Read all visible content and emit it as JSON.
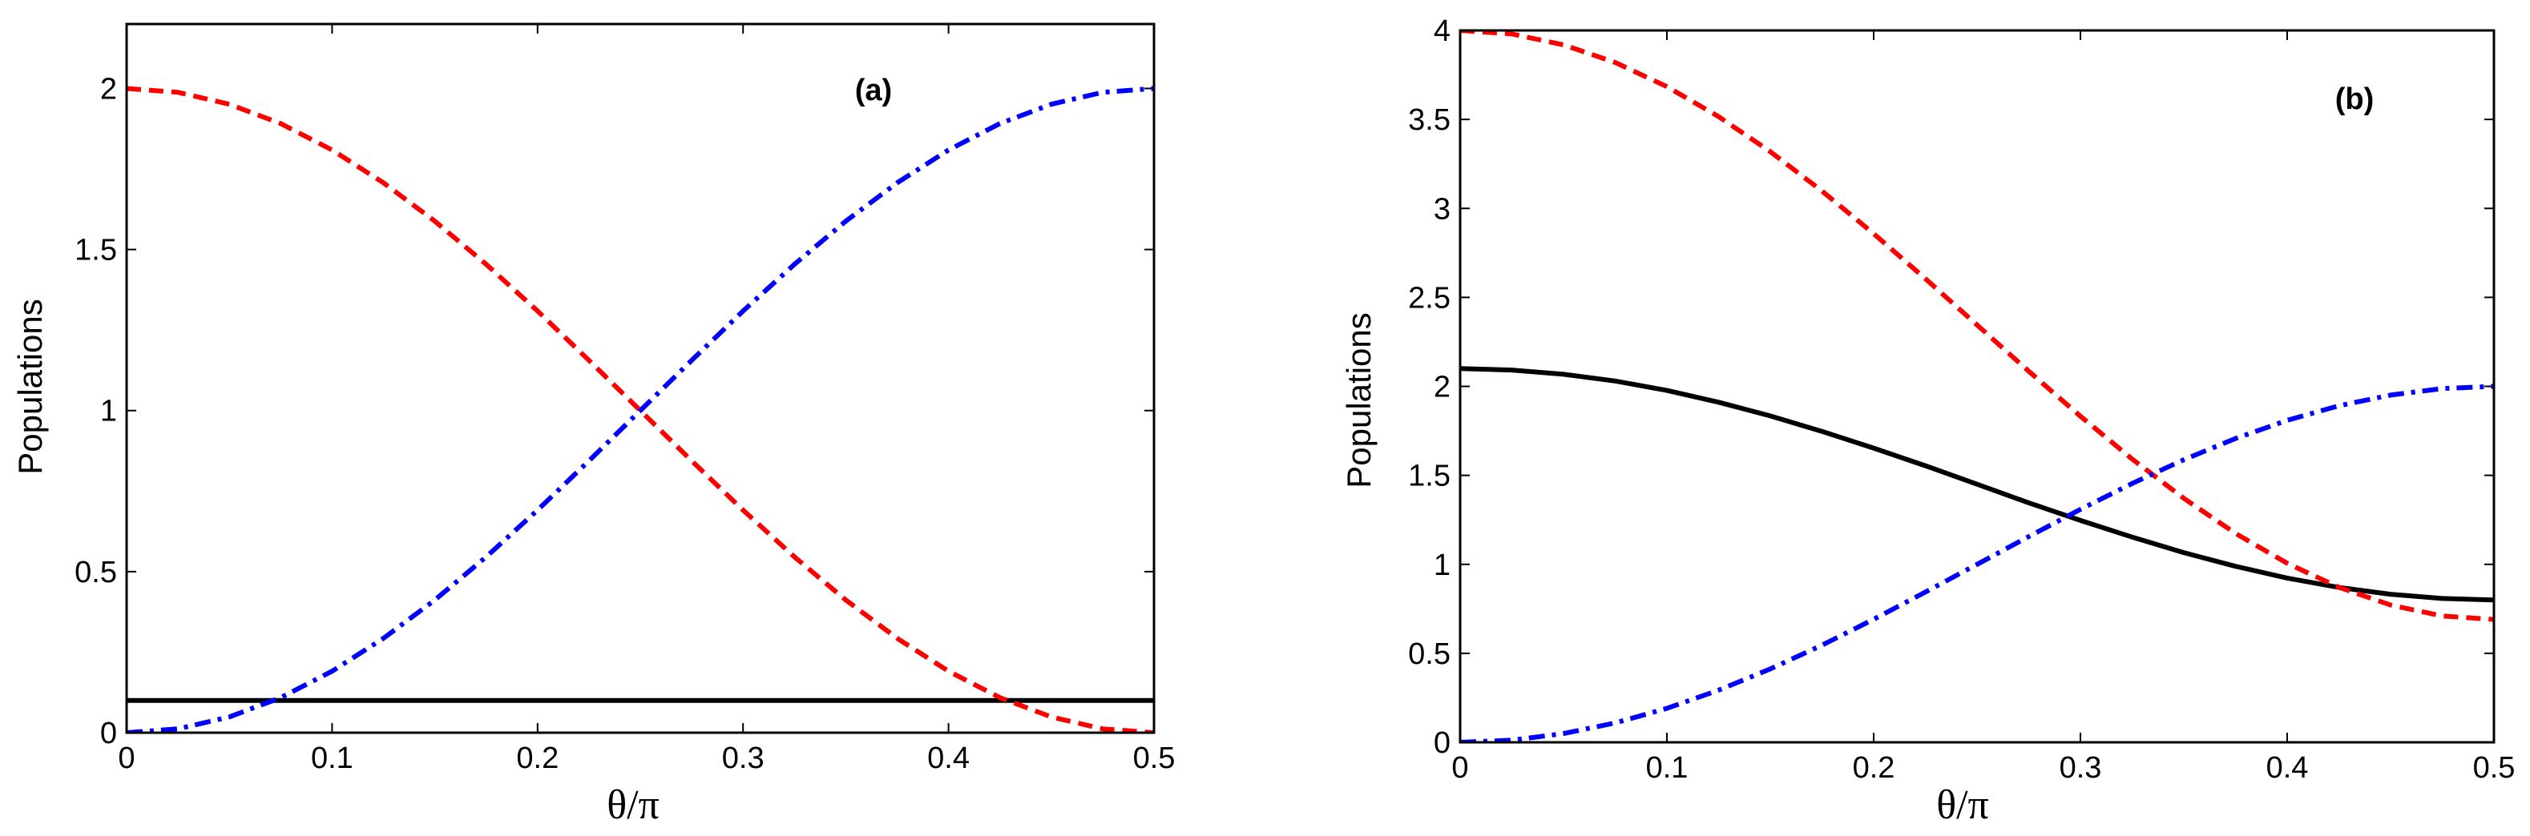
{
  "chart_data": [
    {
      "type": "line",
      "panel_label": "(a)",
      "xlabel": "θ/π",
      "ylabel": "Populations",
      "xlim": [
        0,
        0.5
      ],
      "ylim": [
        0,
        2.2
      ],
      "xticks": [
        0,
        0.1,
        0.2,
        0.3,
        0.4,
        0.5
      ],
      "xtick_labels": [
        "0",
        "0.1",
        "0.2",
        "0.3",
        "0.4",
        "0.5"
      ],
      "yticks": [
        0,
        0.5,
        1,
        1.5,
        2
      ],
      "ytick_labels": [
        "0",
        "0.5",
        "1",
        "1.5",
        "2"
      ],
      "grid": false,
      "series": [
        {
          "name": "black-solid",
          "color": "#000000",
          "style": "solid",
          "x": [
            0,
            0.05,
            0.1,
            0.15,
            0.2,
            0.25,
            0.3,
            0.35,
            0.4,
            0.45,
            0.5
          ],
          "y": [
            0.1,
            0.1,
            0.1,
            0.1,
            0.1,
            0.1,
            0.1,
            0.1,
            0.1,
            0.1,
            0.1
          ]
        },
        {
          "name": "red-dashed",
          "color": "#ff0000",
          "style": "dashed",
          "x": [
            0,
            0.025,
            0.05,
            0.075,
            0.1,
            0.125,
            0.15,
            0.175,
            0.2,
            0.225,
            0.25,
            0.275,
            0.3,
            0.325,
            0.35,
            0.375,
            0.4,
            0.425,
            0.45,
            0.475,
            0.5
          ],
          "y": [
            2.0,
            1.988,
            1.951,
            1.891,
            1.809,
            1.707,
            1.588,
            1.454,
            1.309,
            1.156,
            1.0,
            0.844,
            0.691,
            0.546,
            0.412,
            0.293,
            0.191,
            0.109,
            0.049,
            0.012,
            0.0
          ]
        },
        {
          "name": "blue-dashdot",
          "color": "#0000ff",
          "style": "dashdot",
          "x": [
            0,
            0.025,
            0.05,
            0.075,
            0.1,
            0.125,
            0.15,
            0.175,
            0.2,
            0.225,
            0.25,
            0.275,
            0.3,
            0.325,
            0.35,
            0.375,
            0.4,
            0.425,
            0.45,
            0.475,
            0.5
          ],
          "y": [
            0.0,
            0.012,
            0.049,
            0.109,
            0.191,
            0.293,
            0.412,
            0.546,
            0.691,
            0.844,
            1.0,
            1.156,
            1.309,
            1.454,
            1.588,
            1.707,
            1.809,
            1.891,
            1.951,
            1.988,
            2.0
          ]
        }
      ]
    },
    {
      "type": "line",
      "panel_label": "(b)",
      "xlabel": "θ/π",
      "ylabel": "Populations",
      "xlim": [
        0,
        0.5
      ],
      "ylim": [
        0,
        4
      ],
      "xticks": [
        0,
        0.1,
        0.2,
        0.3,
        0.4,
        0.5
      ],
      "xtick_labels": [
        "0",
        "0.1",
        "0.2",
        "0.3",
        "0.4",
        "0.5"
      ],
      "yticks": [
        0,
        0.5,
        1,
        1.5,
        2,
        2.5,
        3,
        3.5,
        4
      ],
      "ytick_labels": [
        "0",
        "0.5",
        "1",
        "1.5",
        "2",
        "2.5",
        "3",
        "3.5",
        "4"
      ],
      "grid": false,
      "series": [
        {
          "name": "black-solid",
          "color": "#000000",
          "style": "solid",
          "x": [
            0,
            0.025,
            0.05,
            0.075,
            0.1,
            0.125,
            0.15,
            0.175,
            0.2,
            0.225,
            0.25,
            0.275,
            0.3,
            0.325,
            0.35,
            0.375,
            0.4,
            0.425,
            0.45,
            0.475,
            0.5
          ],
          "y": [
            2.1,
            2.092,
            2.068,
            2.03,
            1.977,
            1.911,
            1.834,
            1.747,
            1.653,
            1.554,
            1.45,
            1.346,
            1.247,
            1.153,
            1.066,
            0.989,
            0.923,
            0.87,
            0.832,
            0.808,
            0.8
          ]
        },
        {
          "name": "red-dashed",
          "color": "#ff0000",
          "style": "dashed",
          "x": [
            0,
            0.025,
            0.05,
            0.075,
            0.1,
            0.125,
            0.15,
            0.175,
            0.2,
            0.225,
            0.25,
            0.275,
            0.3,
            0.325,
            0.35,
            0.375,
            0.4,
            0.425,
            0.45,
            0.475,
            0.5
          ],
          "y": [
            4.0,
            3.98,
            3.919,
            3.82,
            3.684,
            3.516,
            3.319,
            3.098,
            2.858,
            2.605,
            2.345,
            2.085,
            1.832,
            1.592,
            1.371,
            1.174,
            1.006,
            0.871,
            0.771,
            0.71,
            0.69
          ]
        },
        {
          "name": "blue-dashdot",
          "color": "#0000ff",
          "style": "dashdot",
          "x": [
            0,
            0.025,
            0.05,
            0.075,
            0.1,
            0.125,
            0.15,
            0.175,
            0.2,
            0.225,
            0.25,
            0.275,
            0.3,
            0.325,
            0.35,
            0.375,
            0.4,
            0.425,
            0.45,
            0.475,
            0.5
          ],
          "y": [
            0.0,
            0.012,
            0.049,
            0.109,
            0.191,
            0.293,
            0.412,
            0.546,
            0.691,
            0.844,
            1.0,
            1.156,
            1.309,
            1.454,
            1.588,
            1.707,
            1.809,
            1.891,
            1.951,
            1.988,
            2.0
          ]
        }
      ]
    }
  ]
}
